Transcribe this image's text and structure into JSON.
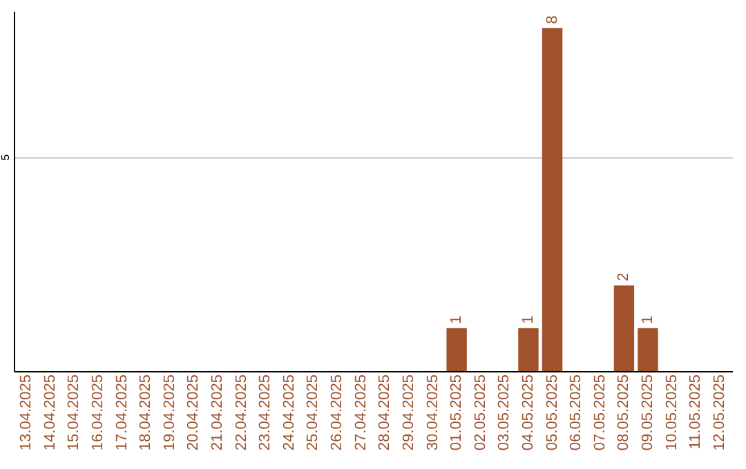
{
  "chart_data": {
    "type": "bar",
    "categories": [
      "13.04.2025",
      "14.04.2025",
      "15.04.2025",
      "16.04.2025",
      "17.04.2025",
      "18.04.2025",
      "19.04.2025",
      "20.04.2025",
      "21.04.2025",
      "22.04.2025",
      "23.04.2025",
      "24.04.2025",
      "25.04.2025",
      "26.04.2025",
      "27.04.2025",
      "28.04.2025",
      "29.04.2025",
      "30.04.2025",
      "01.05.2025",
      "02.05.2025",
      "03.05.2025",
      "04.05.2025",
      "05.05.2025",
      "06.05.2025",
      "07.05.2025",
      "08.05.2025",
      "09.05.2025",
      "10.05.2025",
      "11.05.2025",
      "12.05.2025"
    ],
    "values": [
      null,
      null,
      null,
      null,
      null,
      null,
      null,
      null,
      null,
      null,
      null,
      null,
      null,
      null,
      null,
      null,
      null,
      null,
      1,
      null,
      null,
      1,
      8,
      null,
      null,
      2,
      1,
      null,
      null,
      null
    ],
    "color": "#a0522d",
    "ylim": [
      0,
      8.4
    ],
    "yticks": [
      5
    ],
    "grid": "y",
    "data_labels": true
  }
}
